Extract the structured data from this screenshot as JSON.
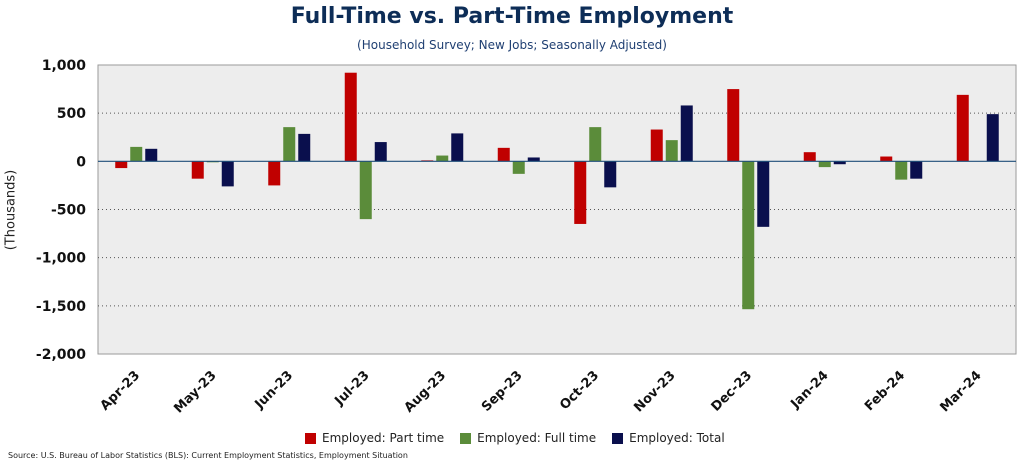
{
  "title": "Full-Time vs. Part-Time Employment",
  "subtitle": "(Household Survey; New Jobs; Seasonally Adjusted)",
  "source": "Source: U.S. Bureau of Labor Statistics (BLS): Current Employment Statistics, Employment Situation",
  "chart_data": {
    "type": "bar",
    "ylabel": "(Thousands)",
    "xlabel": "",
    "ylim": [
      -2000,
      1000
    ],
    "yticks": [
      1000,
      500,
      0,
      -500,
      -1000,
      -1500,
      -2000
    ],
    "ytick_labels": [
      "1,000",
      "500",
      "0",
      "-500",
      "-1,000",
      "-1,500",
      "-2,000"
    ],
    "grid": true,
    "legend_position": "bottom",
    "categories": [
      "Apr-23",
      "May-23",
      "Jun-23",
      "Jul-23",
      "Aug-23",
      "Sep-23",
      "Oct-23",
      "Nov-23",
      "Dec-23",
      "Jan-24",
      "Feb-24",
      "Mar-24"
    ],
    "series": [
      {
        "name": "Employed: Part time",
        "color": "#c00000",
        "values": [
          -70,
          -180,
          -250,
          920,
          10,
          140,
          -650,
          330,
          750,
          95,
          50,
          690
        ]
      },
      {
        "name": "Employed: Full time",
        "color": "#5b8c3a",
        "values": [
          150,
          -10,
          355,
          -600,
          60,
          -130,
          355,
          220,
          -1535,
          -60,
          -190,
          0
        ]
      },
      {
        "name": "Employed: Total",
        "color": "#0a0f4d",
        "values": [
          130,
          -260,
          285,
          200,
          290,
          40,
          -270,
          580,
          -680,
          -30,
          -180,
          490
        ]
      }
    ]
  }
}
